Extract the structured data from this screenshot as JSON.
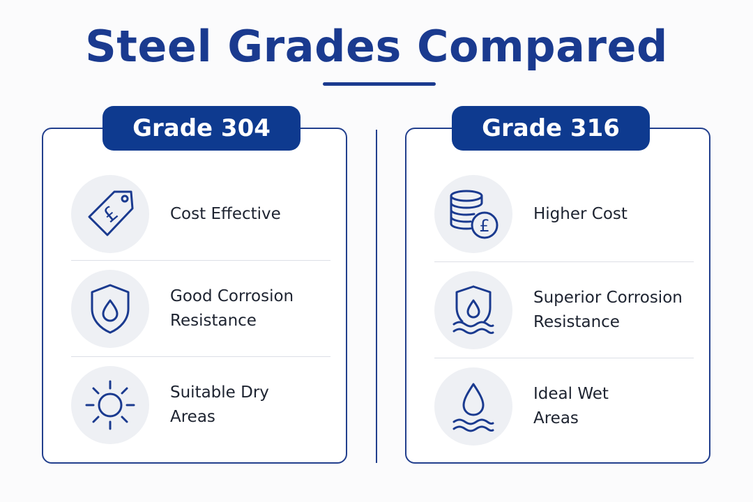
{
  "title": "Steel Grades Compared",
  "colors": {
    "primary": "#1a3a8f",
    "pill": "#0e3a8f",
    "icon_bg": "#eef0f4",
    "text": "#1d2330"
  },
  "grades": [
    {
      "name": "Grade 304",
      "features": [
        {
          "icon": "price-tag-pound-icon",
          "text": "Cost Effective"
        },
        {
          "icon": "shield-droplet-icon",
          "text": "Good Corrosion\nResistance"
        },
        {
          "icon": "sun-icon",
          "text": "Suitable Dry\nAreas"
        }
      ]
    },
    {
      "name": "Grade 316",
      "features": [
        {
          "icon": "coins-pound-icon",
          "text": "Higher Cost"
        },
        {
          "icon": "shield-droplet-waves-icon",
          "text": "Superior Corrosion\nResistance"
        },
        {
          "icon": "droplet-waves-icon",
          "text": "Ideal Wet\nAreas"
        }
      ]
    }
  ]
}
